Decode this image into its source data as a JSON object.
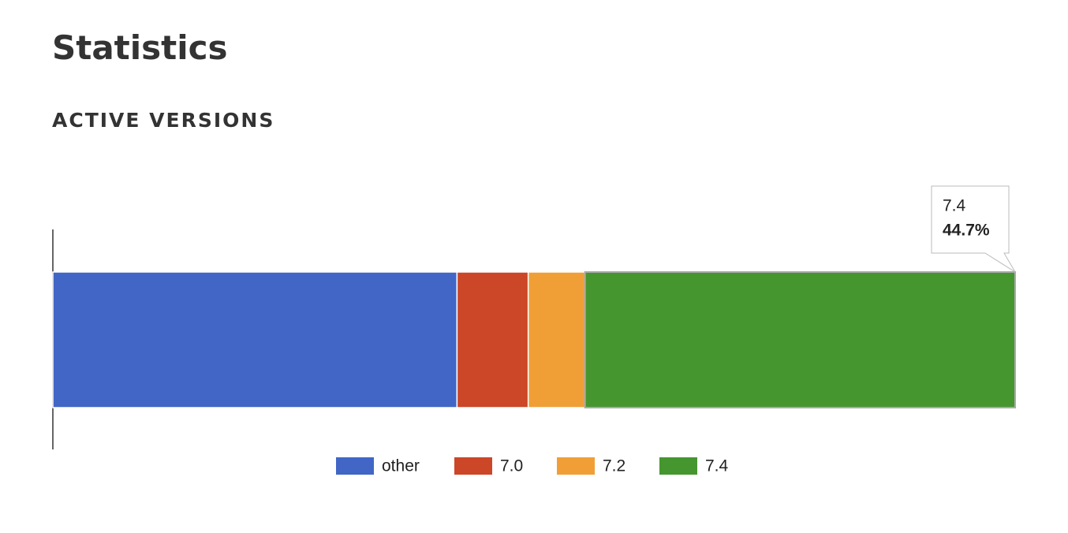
{
  "page": {
    "heading": "Statistics"
  },
  "chart_data": {
    "type": "stacked-bar-horizontal",
    "title": "ACTIVE VERSIONS",
    "categories": [
      null
    ],
    "xlim": [
      0,
      100
    ],
    "series": [
      {
        "name": "other",
        "color": "#4166c6",
        "values": [
          42.0
        ]
      },
      {
        "name": "7.0",
        "color": "#cc4628",
        "values": [
          7.4
        ]
      },
      {
        "name": "7.2",
        "color": "#f09f37",
        "values": [
          5.9
        ]
      },
      {
        "name": "7.4",
        "color": "#46962f",
        "values": [
          44.7
        ],
        "value_labels": [
          "44.7%"
        ]
      }
    ],
    "legend": "bottom",
    "tooltip_series": 3
  }
}
